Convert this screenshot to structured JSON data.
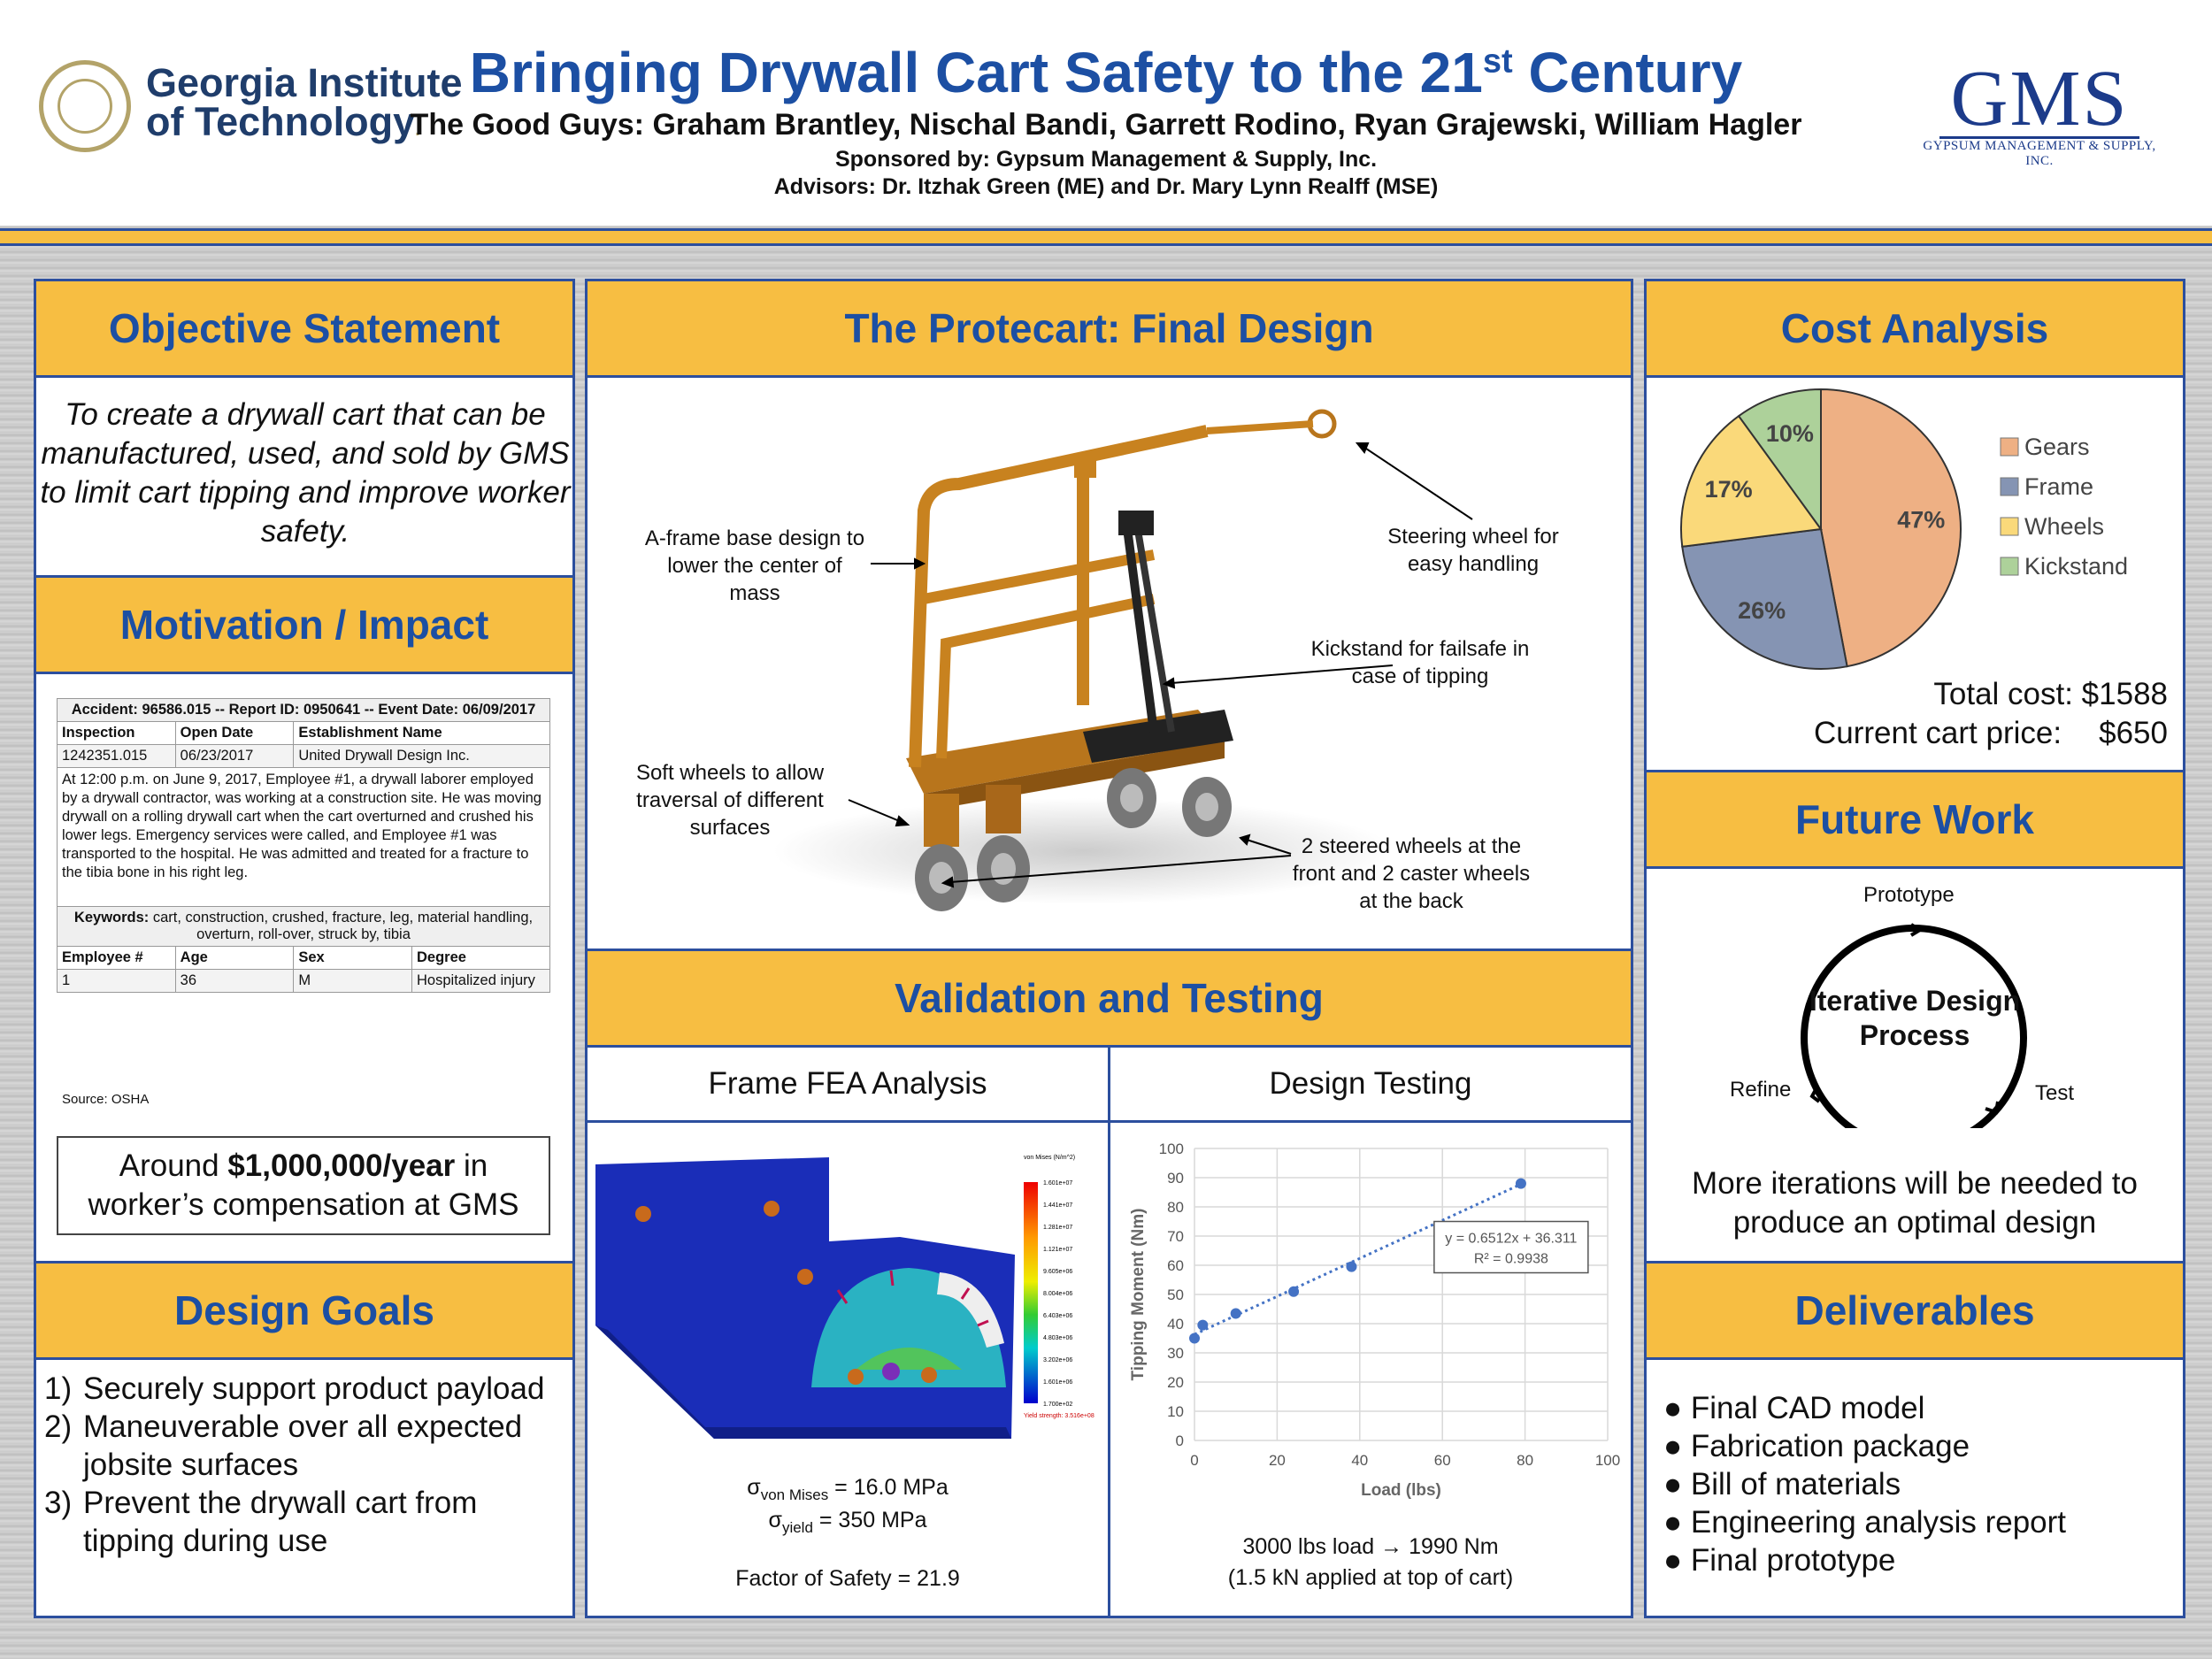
{
  "header": {
    "title_main": "Bringing Drywall Cart Safety to the 21",
    "title_sup": "st",
    "title_end": " Century",
    "authors": "The Good Guys: Graham Brantley, Nischal Bandi, Garrett Rodino, Ryan Grajewski, William Hagler",
    "sponsor": "Sponsored by: Gypsum Management & Supply, Inc.",
    "advisors": "Advisors: Dr. Itzhak Green (ME) and Dr. Mary Lynn Realff (MSE)",
    "gt_line1": "Georgia Institute",
    "gt_line2": "of Technology",
    "gt_mark": ".",
    "gms_big": "GMS",
    "gms_small": "GYPSUM MANAGEMENT & SUPPLY, INC."
  },
  "colors": {
    "accent": "#1c4fa3",
    "gold": "#f7be42",
    "border": "#2c4f9e"
  },
  "objective": {
    "heading": "Objective Statement",
    "text": "To create a drywall cart that can be manufactured, used, and sold by GMS to limit cart tipping and improve worker safety."
  },
  "motivation": {
    "heading": "Motivation / Impact",
    "report_header": "Accident: 96586.015 -- Report ID: 0950641 -- Event Date: 06/09/2017",
    "cols1": [
      "Inspection",
      "Open Date",
      "Establishment Name"
    ],
    "row1": [
      "1242351.015",
      "06/23/2017",
      "United Drywall Design Inc."
    ],
    "narrative": "At 12:00 p.m. on June 9, 2017, Employee #1, a drywall laborer employed by a drywall contractor, was working at a construction site. He was moving drywall on a rolling drywall cart when the cart overturned and crushed his lower legs. Emergency services were called, and Employee #1 was transported to the hospital. He was admitted and treated for a fracture to the tibia bone in his right leg.",
    "keywords_label": "Keywords:",
    "keywords": " cart, construction, crushed, fracture, leg, material handling, overturn, roll-over, struck by, tibia",
    "cols2": [
      "Employee #",
      "Age",
      "Sex",
      "Degree"
    ],
    "row2": [
      "1",
      "36",
      "M",
      "Hospitalized injury"
    ],
    "source": "Source: OSHA",
    "comp_pre": "Around ",
    "comp_bold": "$1,000,000/year",
    "comp_post": " in worker’s compensation at GMS"
  },
  "design_goals": {
    "heading": "Design Goals",
    "items": [
      {
        "num": "1)",
        "text": "Securely support product payload"
      },
      {
        "num": "2)",
        "text": "Maneuverable over all expected jobsite surfaces"
      },
      {
        "num": "3)",
        "text": "Prevent the drywall cart from tipping during use"
      }
    ]
  },
  "final_design": {
    "heading": "The Protecart: Final Design",
    "callouts": {
      "aframe": "A-frame base design to lower the center of mass",
      "steering": "Steering wheel for easy handling",
      "kickstand": "Kickstand for failsafe in case of tipping",
      "softwheels": "Soft wheels to allow traversal of different surfaces",
      "steered": "2 steered wheels at the front and 2 caster wheels at the back"
    }
  },
  "validation": {
    "heading": "Validation and Testing",
    "fea_title": "Frame FEA Analysis",
    "test_title": "Design Testing",
    "fea_legend_title": "von Mises (N/m^2)",
    "fea_legend": [
      "1.601e+07",
      "1.441e+07",
      "1.281e+07",
      "1.121e+07",
      "9.605e+06",
      "8.004e+06",
      "6.403e+06",
      "4.803e+06",
      "3.202e+06",
      "1.601e+06",
      "1.700e+02"
    ],
    "fea_yield": "Yield strength: 3.516e+08",
    "sigma_vm_sub": "von Mises",
    "sigma_vm_val": " = 16.0 MPa",
    "sigma_y_sub": "yield",
    "sigma_y_val": " = 350 MPa",
    "sigma": "σ",
    "fos": "Factor of Safety = 21.9",
    "load_result": "3000 lbs load → 1990 Nm",
    "load_note": "(1.5 kN applied at top of cart)"
  },
  "chart_data": [
    {
      "type": "scatter",
      "xlabel": "Load (lbs)",
      "ylabel": "Tipping Moment (Nm)",
      "xlim": [
        0,
        100
      ],
      "ylim": [
        0,
        100
      ],
      "x_ticks": [
        "0",
        "20",
        "40",
        "60",
        "80",
        "100"
      ],
      "y_ticks": [
        "0",
        "10",
        "20",
        "30",
        "40",
        "50",
        "60",
        "70",
        "80",
        "90",
        "100"
      ],
      "grid": true,
      "points": [
        [
          0,
          35
        ],
        [
          2,
          39.5
        ],
        [
          10,
          43.5
        ],
        [
          24,
          51
        ],
        [
          38,
          59.5
        ],
        [
          79,
          88
        ]
      ],
      "trendline": {
        "slope": 0.6512,
        "intercept": 36.311,
        "label": "y = 0.6512x + 36.311",
        "r2_label": "R² = 0.9938"
      }
    },
    {
      "type": "pie",
      "slices": [
        {
          "label": "Gears",
          "value": 47,
          "text": "47%",
          "color": "#eeb084"
        },
        {
          "label": "Frame",
          "value": 26,
          "text": "26%",
          "color": "#8594b3"
        },
        {
          "label": "Wheels",
          "value": 17,
          "text": "17%",
          "color": "#fad97a"
        },
        {
          "label": "Kickstand",
          "value": 10,
          "text": "10%",
          "color": "#add19a"
        }
      ]
    }
  ],
  "cost": {
    "heading": "Cost Analysis",
    "total_label": "Total cost: $1588",
    "current_label": "Current cart price:",
    "current_value": "$650"
  },
  "future": {
    "heading": "Future Work",
    "prototype": "Prototype",
    "refine": "Refine",
    "test": "Test",
    "center": "Iterative Design Process",
    "note": "More iterations will be needed to produce an optimal design"
  },
  "deliverables": {
    "heading": "Deliverables",
    "items": [
      "Final CAD model",
      "Fabrication package",
      "Bill of materials",
      "Engineering analysis report",
      "Final prototype"
    ]
  }
}
